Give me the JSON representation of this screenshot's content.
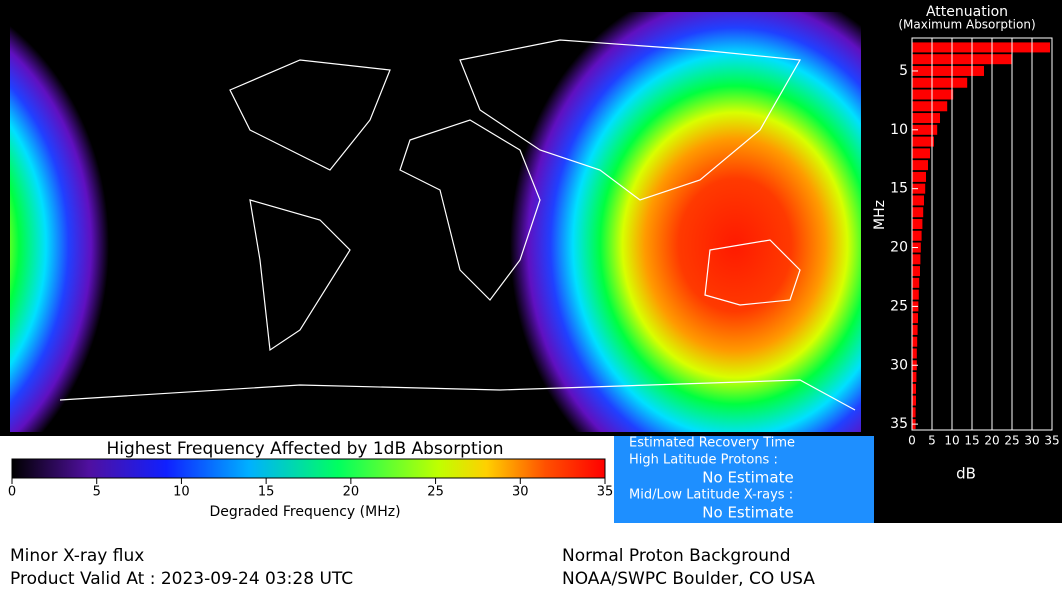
{
  "colorbar": {
    "title": "Highest Frequency Affected by 1dB Absorption",
    "xlabel": "Degraded Frequency (MHz)",
    "lim": [
      0,
      35
    ],
    "ticks": [
      0,
      5,
      10,
      15,
      20,
      25,
      30,
      35
    ]
  },
  "chart_data": {
    "type": "bar",
    "orientation": "horizontal",
    "title": "Attenuation",
    "subtitle": "(Maximum Absorption)",
    "ylabel": "MHz",
    "xlabel": "dB",
    "categories": [
      3,
      4,
      5,
      6,
      7,
      8,
      9,
      10,
      11,
      12,
      13,
      14,
      15,
      16,
      17,
      18,
      19,
      20,
      21,
      22,
      23,
      24,
      25,
      26,
      27,
      28,
      29,
      30,
      31,
      32,
      33,
      34,
      35
    ],
    "values": [
      34.5,
      25,
      18,
      13.8,
      10.3,
      8.8,
      7,
      6.3,
      5.5,
      4.5,
      4,
      3.5,
      3.3,
      3,
      2.8,
      2.6,
      2.4,
      2.2,
      2.1,
      2,
      1.8,
      1.7,
      1.6,
      1.5,
      1.4,
      1.3,
      1.2,
      1.2,
      1.1,
      1,
      1,
      0.9,
      0.9
    ],
    "color": "#ff0000",
    "xlim": [
      0,
      35
    ],
    "xticks": [
      0,
      5,
      10,
      15,
      20,
      25,
      30,
      35
    ],
    "ylim": [
      2.2,
      35.5
    ],
    "yticks": [
      5,
      10,
      15,
      20,
      25,
      30,
      35
    ],
    "grid": true
  },
  "recovery": {
    "title": "Estimated Recovery Time",
    "high_label": "High Latitude Protons :",
    "high_value": "No Estimate",
    "mid_label": "Mid/Low Latitude X-rays :",
    "mid_value": "No Estimate"
  },
  "footer": {
    "xray": "Minor X-ray flux",
    "valid": "Product Valid At : 2023-09-24 03:28 UTC",
    "proton": "Normal Proton Background",
    "source": "NOAA/SWPC Boulder, CO USA"
  }
}
